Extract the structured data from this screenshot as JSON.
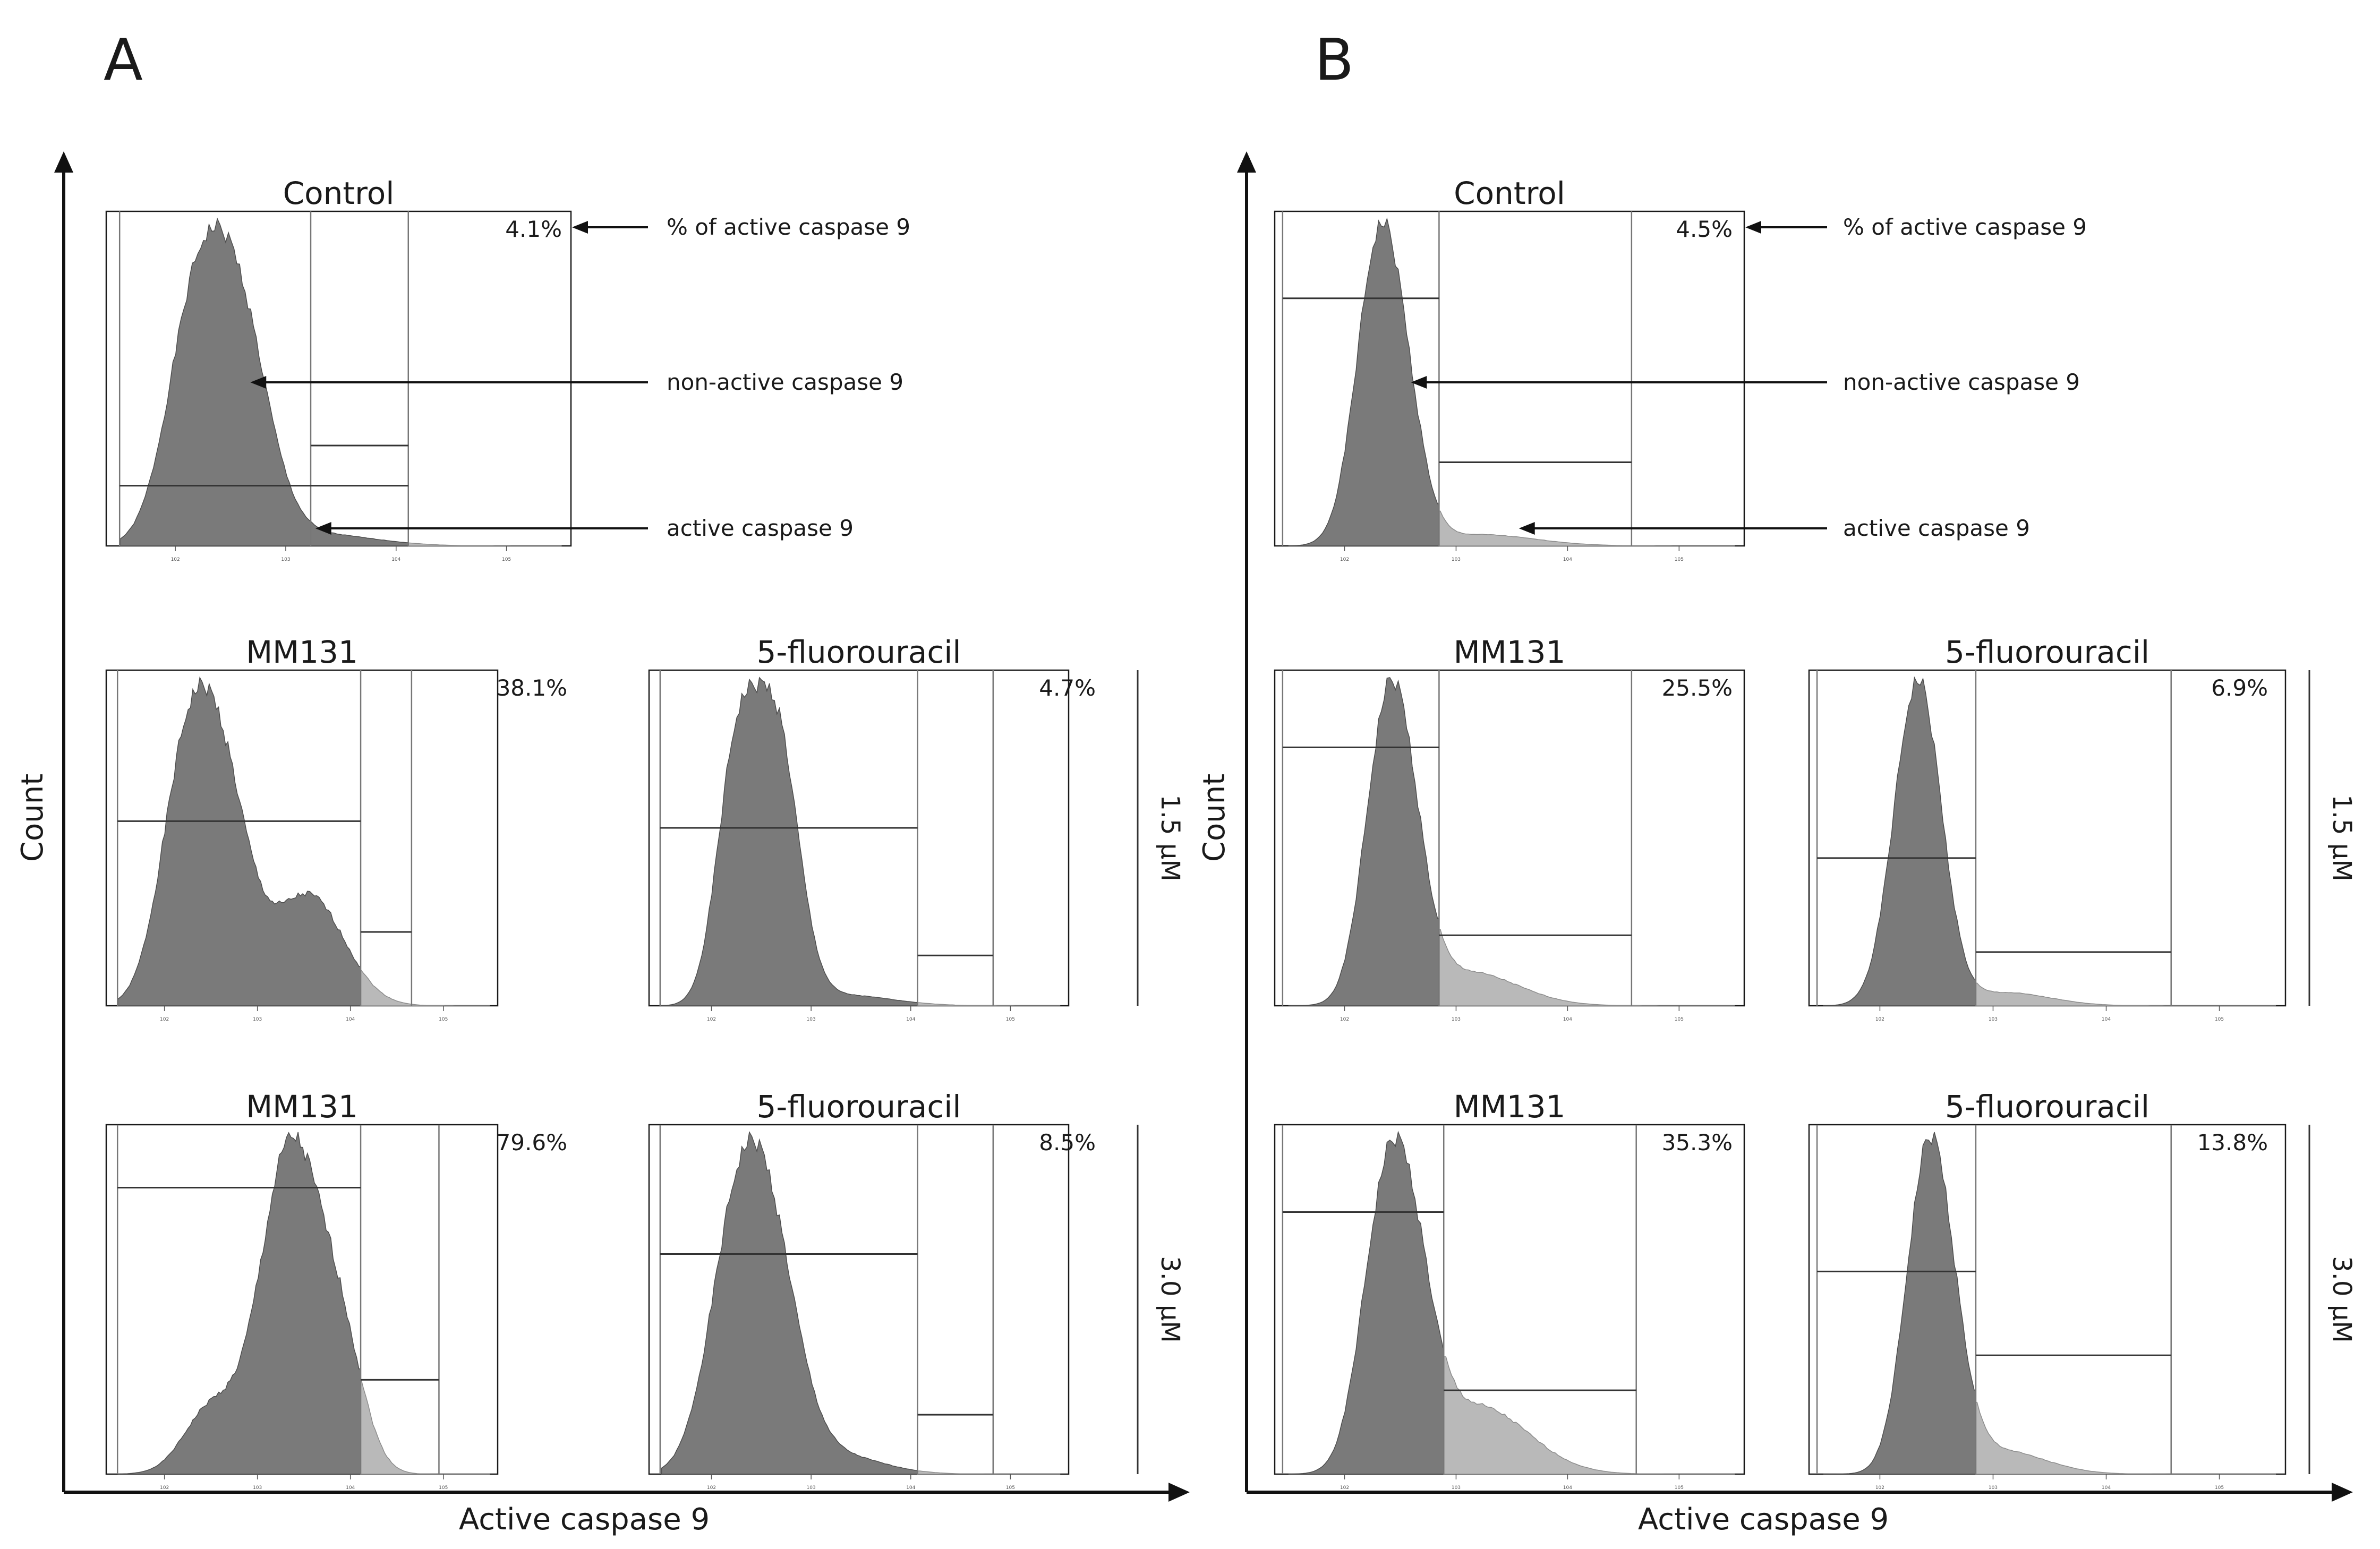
{
  "chart_data": [
    {
      "panel": "A",
      "type": "histogram",
      "xlabel": "Active caspase 9",
      "ylabel": "Count",
      "annotations": [
        "% of active caspase 9",
        "non-active caspase 9",
        "active caspase 9"
      ],
      "dose_labels": [
        "1.5 µM",
        "3.0 µM"
      ],
      "histograms": [
        {
          "title": "Control",
          "active_percent": "4.1%",
          "active_percent_value": 4.1,
          "peak_log10": 2.55,
          "width": 0.28,
          "shoulder_log10": 2.15,
          "shoulder_rel": 0.82,
          "second_log10": 3.3,
          "second_rel": 0.05,
          "second_width": 0.5
        },
        {
          "title": "MM131",
          "active_percent": "38.1%",
          "active_percent_value": 38.1,
          "dose": "1.5 µM",
          "peak_log10": 2.6,
          "width": 0.3,
          "shoulder_log10": 2.2,
          "shoulder_rel": 0.85,
          "second_log10": 3.55,
          "second_rel": 0.5,
          "second_width": 0.38
        },
        {
          "title": "5-fluorouracil",
          "active_percent": "4.7%",
          "active_percent_value": 4.7,
          "dose": "1.5 µM",
          "peak_log10": 2.65,
          "width": 0.22,
          "shoulder_log10": 2.25,
          "shoulder_rel": 0.88,
          "second_log10": 3.3,
          "second_rel": 0.04,
          "second_width": 0.5
        },
        {
          "title": "MM131",
          "active_percent": "79.6%",
          "active_percent_value": 79.6,
          "dose": "3.0 µM",
          "peak_log10": 3.35,
          "width": 0.32,
          "shoulder_log10": 2.5,
          "shoulder_rel": 0.2,
          "second_log10": 3.9,
          "second_rel": 0.35,
          "second_width": 0.25
        },
        {
          "title": "5-fluorouracil",
          "active_percent": "8.5%",
          "active_percent_value": 8.5,
          "dose": "3.0 µM",
          "peak_log10": 2.55,
          "width": 0.3,
          "shoulder_log10": 2.2,
          "shoulder_rel": 0.7,
          "second_log10": 3.25,
          "second_rel": 0.08,
          "second_width": 0.45
        }
      ]
    },
    {
      "panel": "B",
      "type": "histogram",
      "xlabel": "Active caspase 9",
      "ylabel": "Count",
      "annotations": [
        "% of active caspase 9",
        "non-active caspase 9",
        "active caspase 9"
      ],
      "dose_labels": [
        "1.5 µM",
        "3.0 µM"
      ],
      "histograms": [
        {
          "title": "Control",
          "active_percent": "4.5%",
          "active_percent_value": 4.5,
          "peak_log10": 2.3,
          "width": 0.2,
          "shoulder_log10": 2.55,
          "shoulder_rel": 0.3,
          "second_log10": 3.2,
          "second_rel": 0.04,
          "second_width": 0.5
        },
        {
          "title": "MM131",
          "active_percent": "25.5%",
          "active_percent_value": 25.5,
          "dose": "1.5 µM",
          "peak_log10": 2.5,
          "width": 0.2,
          "shoulder_log10": 2.3,
          "shoulder_rel": 0.6,
          "second_log10": 3.1,
          "second_rel": 0.15,
          "second_width": 0.45
        },
        {
          "title": "5-fluorouracil",
          "active_percent": "6.9%",
          "active_percent_value": 6.9,
          "dose": "1.5 µM",
          "peak_log10": 2.3,
          "width": 0.2,
          "shoulder_log10": 2.45,
          "shoulder_rel": 0.3,
          "second_log10": 3.1,
          "second_rel": 0.05,
          "second_width": 0.4
        },
        {
          "title": "MM131",
          "active_percent": "35.3%",
          "active_percent_value": 35.3,
          "dose": "3.0 µM",
          "peak_log10": 2.55,
          "width": 0.22,
          "shoulder_log10": 2.3,
          "shoulder_rel": 0.7,
          "second_log10": 3.2,
          "second_rel": 0.3,
          "second_width": 0.45
        },
        {
          "title": "5-fluorouracil",
          "active_percent": "13.8%",
          "active_percent_value": 13.8,
          "dose": "3.0 µM",
          "peak_log10": 2.5,
          "width": 0.2,
          "shoulder_log10": 2.35,
          "shoulder_rel": 0.5,
          "second_log10": 3.05,
          "second_rel": 0.1,
          "second_width": 0.4
        }
      ]
    }
  ],
  "panel_labels": [
    "A",
    "B"
  ]
}
